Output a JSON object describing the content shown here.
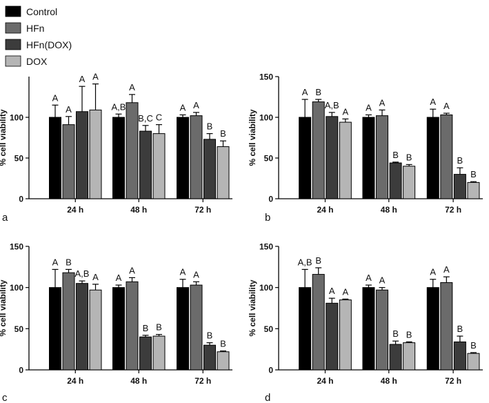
{
  "legend": {
    "items": [
      {
        "label": "Control",
        "color": "#000000"
      },
      {
        "label": "HFn",
        "color": "#6b6b6b"
      },
      {
        "label": "HFn(DOX)",
        "color": "#3c3c3c"
      },
      {
        "label": "DOX",
        "color": "#b5b5b5"
      }
    ]
  },
  "chart_data": [
    {
      "type": "bar",
      "panel": "a",
      "categories": [
        "24 h",
        "48 h",
        "72 h"
      ],
      "ylabel": "% cell viability",
      "ylim": [
        0,
        150
      ],
      "yticks": [
        0,
        50,
        100
      ],
      "series": [
        {
          "name": "Control",
          "values": [
            100,
            100,
            100
          ],
          "errors": [
            15,
            4,
            3
          ],
          "labels": [
            "A",
            "A,B",
            "A"
          ]
        },
        {
          "name": "HFn",
          "values": [
            91,
            118,
            102
          ],
          "errors": [
            10,
            10,
            4
          ],
          "labels": [
            "A",
            "A",
            "A"
          ]
        },
        {
          "name": "HFn(DOX)",
          "values": [
            107,
            83,
            73
          ],
          "errors": [
            31,
            7,
            7
          ],
          "labels": [
            "A",
            "B,C",
            "B"
          ]
        },
        {
          "name": "DOX",
          "values": [
            109,
            80,
            64
          ],
          "errors": [
            32,
            11,
            7
          ],
          "labels": [
            "A",
            "C",
            "B"
          ]
        }
      ]
    },
    {
      "type": "bar",
      "panel": "b",
      "categories": [
        "24 h",
        "48 h",
        "72 h"
      ],
      "ylabel": "% cell viability",
      "ylim": [
        0,
        150
      ],
      "yticks": [
        0,
        50,
        100,
        150
      ],
      "series": [
        {
          "name": "Control",
          "values": [
            100,
            100,
            100
          ],
          "errors": [
            22,
            3,
            10
          ],
          "labels": [
            "A",
            "A",
            "A"
          ]
        },
        {
          "name": "HFn",
          "values": [
            119,
            102,
            103
          ],
          "errors": [
            3,
            7,
            2
          ],
          "labels": [
            "B",
            "A",
            "A"
          ]
        },
        {
          "name": "HFn(DOX)",
          "values": [
            101,
            44,
            30
          ],
          "errors": [
            5,
            1,
            8
          ],
          "labels": [
            "A,B",
            "B",
            "B"
          ]
        },
        {
          "name": "DOX",
          "values": [
            94,
            40,
            20
          ],
          "errors": [
            4,
            2,
            1
          ],
          "labels": [
            "A",
            "B",
            "B"
          ]
        }
      ]
    },
    {
      "type": "bar",
      "panel": "c",
      "categories": [
        "24 h",
        "48 h",
        "72 h"
      ],
      "ylabel": "% cell viability",
      "ylim": [
        0,
        150
      ],
      "yticks": [
        0,
        50,
        100,
        150
      ],
      "series": [
        {
          "name": "Control",
          "values": [
            100,
            100,
            100
          ],
          "errors": [
            22,
            3,
            10
          ],
          "labels": [
            "A",
            "A",
            "A"
          ]
        },
        {
          "name": "HFn",
          "values": [
            118,
            107,
            103
          ],
          "errors": [
            4,
            5,
            4
          ],
          "labels": [
            "B",
            "A",
            "A"
          ]
        },
        {
          "name": "HFn(DOX)",
          "values": [
            105,
            40,
            30
          ],
          "errors": [
            3,
            2,
            3
          ],
          "labels": [
            "A,B",
            "B",
            "B"
          ]
        },
        {
          "name": "DOX",
          "values": [
            97,
            41,
            22
          ],
          "errors": [
            7,
            2,
            1
          ],
          "labels": [
            "A",
            "B",
            "B"
          ]
        }
      ]
    },
    {
      "type": "bar",
      "panel": "d",
      "categories": [
        "24 h",
        "48 h",
        "72 h"
      ],
      "ylabel": "% cell viability",
      "ylim": [
        0,
        150
      ],
      "yticks": [
        0,
        50,
        100,
        150
      ],
      "series": [
        {
          "name": "Control",
          "values": [
            100,
            100,
            100
          ],
          "errors": [
            22,
            3,
            10
          ],
          "labels": [
            "A,B",
            "A",
            "A"
          ]
        },
        {
          "name": "HFn",
          "values": [
            116,
            97,
            106
          ],
          "errors": [
            8,
            3,
            7
          ],
          "labels": [
            "B",
            "A",
            "A"
          ]
        },
        {
          "name": "HFn(DOX)",
          "values": [
            81,
            31,
            34
          ],
          "errors": [
            6,
            4,
            7
          ],
          "labels": [
            "A",
            "B",
            "B"
          ]
        },
        {
          "name": "DOX",
          "values": [
            85,
            33,
            20
          ],
          "errors": [
            1,
            1,
            1
          ],
          "labels": [
            "A",
            "B",
            "B"
          ]
        }
      ]
    }
  ]
}
